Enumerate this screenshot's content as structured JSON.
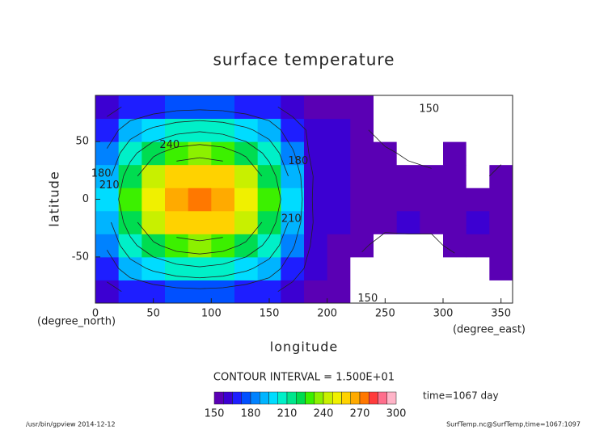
{
  "chart_data": {
    "type": "heatmap",
    "title": "surface temperature",
    "x_label": "longitude",
    "y_label": "latitude",
    "x_unit": "(degree_east)",
    "y_unit": "(degree_north)",
    "contour_note": "CONTOUR INTERVAL = 1.500E+01",
    "time_note": "time=1067 day",
    "footer_left": "/usr/bin/gpview  2014-12-12",
    "footer_right": "SurfTemp.nc@SurfTemp,time=1067:1097",
    "xlim": [
      0,
      360
    ],
    "ylim": [
      -90,
      90
    ],
    "xticks": [
      0,
      50,
      100,
      150,
      200,
      250,
      300,
      350
    ],
    "yticks": [
      -50,
      0,
      50
    ],
    "x": [
      10,
      30,
      50,
      70,
      90,
      110,
      130,
      150,
      170,
      190,
      210,
      230,
      250,
      270,
      290,
      310,
      330,
      350
    ],
    "y": [
      -80,
      -60,
      -40,
      -20,
      0,
      20,
      40,
      60,
      80
    ],
    "z": [
      [
        160,
        168,
        172,
        175,
        176,
        175,
        172,
        168,
        160,
        155,
        152,
        146,
        142,
        145,
        140,
        143,
        145,
        144
      ],
      [
        172,
        188,
        198,
        205,
        208,
        205,
        198,
        188,
        172,
        158,
        150,
        145,
        140,
        142,
        143,
        146,
        148,
        150
      ],
      [
        182,
        205,
        222,
        232,
        235,
        232,
        222,
        205,
        182,
        160,
        154,
        152,
        145,
        142,
        148,
        152,
        150,
        155
      ],
      [
        190,
        218,
        240,
        255,
        260,
        255,
        240,
        218,
        190,
        162,
        158,
        156,
        154,
        158,
        152,
        155,
        158,
        154
      ],
      [
        195,
        225,
        248,
        265,
        270,
        265,
        248,
        225,
        195,
        160,
        158,
        155,
        157,
        154,
        155,
        152,
        150,
        153
      ],
      [
        190,
        218,
        240,
        255,
        260,
        255,
        240,
        218,
        190,
        162,
        160,
        157,
        155,
        154,
        152,
        150,
        148,
        152
      ],
      [
        182,
        205,
        222,
        232,
        235,
        232,
        222,
        205,
        182,
        158,
        160,
        155,
        152,
        148,
        146,
        150,
        145,
        148
      ],
      [
        172,
        188,
        198,
        205,
        208,
        205,
        198,
        188,
        172,
        160,
        158,
        152,
        145,
        142,
        140,
        146,
        144,
        148
      ],
      [
        160,
        168,
        172,
        175,
        176,
        175,
        172,
        168,
        160,
        156,
        154,
        150,
        145,
        140,
        143,
        142,
        145,
        148
      ]
    ],
    "clevels": [
      150,
      157.5,
      165,
      172.5,
      180,
      187.5,
      195,
      202.5,
      210,
      217.5,
      225,
      232.5,
      240,
      247.5,
      255,
      262.5,
      270,
      277.5,
      285,
      292.5,
      300
    ],
    "colors": [
      "#5a00b4",
      "#3c00d2",
      "#1e1eff",
      "#0050ff",
      "#0082ff",
      "#00b4ff",
      "#00dcff",
      "#00f0c8",
      "#00e68c",
      "#00dc50",
      "#3cf000",
      "#8cf000",
      "#c8f000",
      "#f0f000",
      "#ffd200",
      "#ffaa00",
      "#ff7800",
      "#ff3c3c",
      "#ff6e8c",
      "#ffb4c8"
    ],
    "cticks": [
      150,
      180,
      210,
      240,
      270,
      300
    ],
    "contour_levels": [
      150,
      165,
      180,
      195,
      210,
      225,
      240,
      255,
      270
    ],
    "contour_labels": [
      {
        "x": 5,
        "y": 22,
        "level": 180
      },
      {
        "x": 12,
        "y": 12,
        "level": 210
      },
      {
        "x": 64,
        "y": 47,
        "level": 240
      },
      {
        "x": 169,
        "y": -17,
        "level": 210
      },
      {
        "x": 175,
        "y": 33,
        "level": 180
      },
      {
        "x": 288,
        "y": 78,
        "level": 150
      },
      {
        "x": 235,
        "y": -86,
        "level": 150
      }
    ]
  }
}
